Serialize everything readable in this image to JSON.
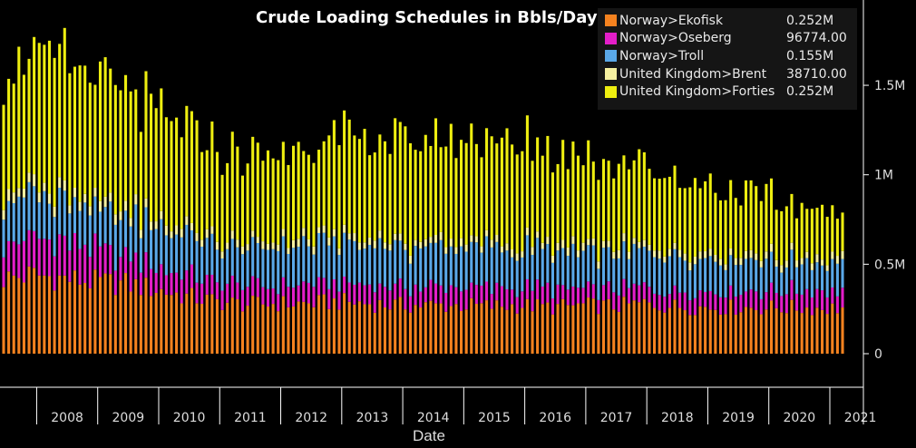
{
  "chart_data": {
    "type": "bar",
    "stacked": true,
    "title": "Crude Loading Schedules in Bbls/Day",
    "xlabel": "Date",
    "ylabel": "",
    "ylim": [
      0,
      1850000
    ],
    "yticks": [
      {
        "value": 0,
        "label": "0"
      },
      {
        "value": 500000,
        "label": "0.5M"
      },
      {
        "value": 1000000,
        "label": "1M"
      },
      {
        "value": 1500000,
        "label": "1.5M"
      }
    ],
    "x_start": "2007-06",
    "x_end": "2021-03",
    "year_labels": [
      "2008",
      "2009",
      "2010",
      "2011",
      "2012",
      "2013",
      "2014",
      "2015",
      "2016",
      "2017",
      "2018",
      "2019",
      "2020",
      "2021"
    ],
    "legend_placement": "top-right",
    "series": [
      {
        "name": "Norway>Ekofisk",
        "color": "#f5821f",
        "last_value": "0.252M",
        "anchors": [
          [
            0,
            420000
          ],
          [
            6,
            440000
          ],
          [
            12,
            420000
          ],
          [
            18,
            400000
          ],
          [
            24,
            390000
          ],
          [
            30,
            360000
          ],
          [
            36,
            320000
          ],
          [
            42,
            290000
          ],
          [
            48,
            275000
          ],
          [
            54,
            280000
          ],
          [
            60,
            280000
          ],
          [
            66,
            290000
          ],
          [
            72,
            280000
          ],
          [
            78,
            270000
          ],
          [
            84,
            270000
          ],
          [
            90,
            270000
          ],
          [
            96,
            265000
          ],
          [
            102,
            270000
          ],
          [
            108,
            260000
          ],
          [
            114,
            270000
          ],
          [
            120,
            265000
          ],
          [
            126,
            280000
          ],
          [
            132,
            265000
          ],
          [
            138,
            260000
          ],
          [
            164,
            255000
          ]
        ]
      },
      {
        "name": "Norway>Oseberg",
        "color": "#e31ec8",
        "last_value": "96774.00",
        "anchors": [
          [
            0,
            200000
          ],
          [
            12,
            200000
          ],
          [
            24,
            150000
          ],
          [
            36,
            120000
          ],
          [
            48,
            100000
          ],
          [
            72,
            100000
          ],
          [
            96,
            100000
          ],
          [
            120,
            90000
          ],
          [
            144,
            95000
          ],
          [
            164,
            97000
          ]
        ]
      },
      {
        "name": "Norway>Troll",
        "color": "#5aa8e8",
        "last_value": "0.155M",
        "anchors": [
          [
            0,
            230000
          ],
          [
            12,
            240000
          ],
          [
            24,
            230000
          ],
          [
            36,
            220000
          ],
          [
            48,
            210000
          ],
          [
            72,
            220000
          ],
          [
            96,
            220000
          ],
          [
            120,
            200000
          ],
          [
            144,
            160000
          ],
          [
            164,
            155000
          ]
        ]
      },
      {
        "name": "United Kingdom>Brent",
        "color": "#f5f0a0",
        "last_value": "38710.00",
        "anchors": [
          [
            0,
            60000
          ],
          [
            24,
            50000
          ],
          [
            48,
            40000
          ],
          [
            96,
            40000
          ],
          [
            164,
            39000
          ]
        ]
      },
      {
        "name": "United Kingdom>Forties",
        "color": "#eeee10",
        "last_value": "0.252M",
        "anchors": [
          [
            0,
            700000
          ],
          [
            12,
            740000
          ],
          [
            24,
            640000
          ],
          [
            36,
            560000
          ],
          [
            48,
            460000
          ],
          [
            60,
            520000
          ],
          [
            72,
            560000
          ],
          [
            84,
            560000
          ],
          [
            96,
            580000
          ],
          [
            108,
            520000
          ],
          [
            120,
            480000
          ],
          [
            132,
            420000
          ],
          [
            144,
            360000
          ],
          [
            156,
            280000
          ],
          [
            164,
            252000
          ]
        ]
      }
    ]
  }
}
